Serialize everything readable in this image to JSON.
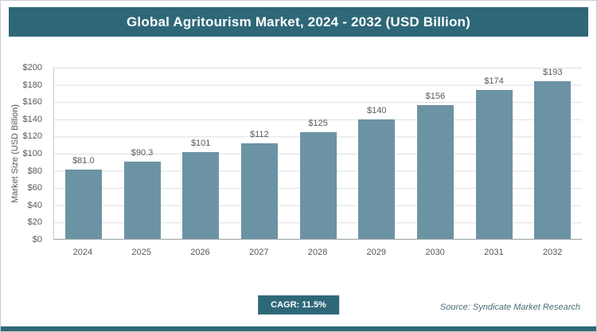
{
  "title": "Global Agritourism Market, 2024 - 2032 (USD Billion)",
  "cagr_label": "CAGR: 11.5%",
  "source": "Source: Syndicate Market Research",
  "colors": {
    "title_bg": "#2E6878",
    "bar_fill": "#6C93A4",
    "badge_bg": "#2E6878",
    "grid": "#dcdfe2",
    "text": "#595959"
  },
  "chart_data": {
    "type": "bar",
    "title": "Global Agritourism Market, 2024 - 2032 (USD Billion)",
    "xlabel": "",
    "ylabel": "Market Size (USD Billion)",
    "categories": [
      "2024",
      "2025",
      "2026",
      "2027",
      "2028",
      "2029",
      "2030",
      "2031",
      "2032"
    ],
    "values": [
      81.0,
      90.3,
      101,
      112,
      125,
      140,
      156,
      174,
      193
    ],
    "value_labels": [
      "$81.0",
      "$90.3",
      "$101",
      "$112",
      "$125",
      "$140",
      "$156",
      "$174",
      "$193"
    ],
    "ylim": [
      0,
      200
    ],
    "ytick_step": 20,
    "ytick_labels": [
      "$0",
      "$20",
      "$40",
      "$60",
      "$80",
      "$100",
      "$120",
      "$140",
      "$160",
      "$180",
      "$200"
    ],
    "grid": true,
    "legend": false
  }
}
